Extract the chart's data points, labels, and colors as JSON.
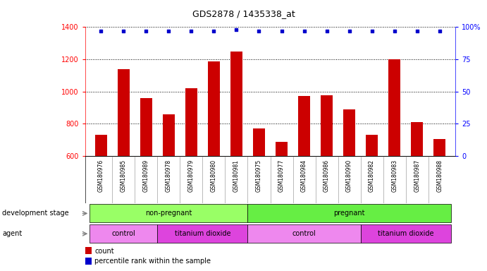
{
  "title": "GDS2878 / 1435338_at",
  "samples": [
    "GSM180976",
    "GSM180985",
    "GSM180989",
    "GSM180978",
    "GSM180979",
    "GSM180980",
    "GSM180981",
    "GSM180975",
    "GSM180977",
    "GSM180984",
    "GSM180986",
    "GSM180990",
    "GSM180982",
    "GSM180983",
    "GSM180987",
    "GSM180988"
  ],
  "counts": [
    730,
    1140,
    960,
    860,
    1020,
    1185,
    1250,
    770,
    685,
    970,
    975,
    890,
    730,
    1200,
    810,
    705
  ],
  "percentiles": [
    97,
    97,
    97,
    97,
    97,
    97,
    98,
    97,
    97,
    97,
    97,
    97,
    97,
    97,
    97,
    97
  ],
  "bar_color": "#CC0000",
  "dot_color": "#0000CC",
  "ylim_left": [
    600,
    1400
  ],
  "ylim_right": [
    0,
    100
  ],
  "yticks_left": [
    600,
    800,
    1000,
    1200,
    1400
  ],
  "yticks_right": [
    0,
    25,
    50,
    75,
    100
  ],
  "groups": [
    {
      "label": "non-pregnant",
      "start": 0,
      "end": 7,
      "color": "#99FF66"
    },
    {
      "label": "pregnant",
      "start": 7,
      "end": 16,
      "color": "#66EE44"
    }
  ],
  "agents": [
    {
      "label": "control",
      "start": 0,
      "end": 3,
      "color": "#EE88EE"
    },
    {
      "label": "titanium dioxide",
      "start": 3,
      "end": 7,
      "color": "#DD44DD"
    },
    {
      "label": "control",
      "start": 7,
      "end": 12,
      "color": "#EE88EE"
    },
    {
      "label": "titanium dioxide",
      "start": 12,
      "end": 16,
      "color": "#DD44DD"
    }
  ],
  "legend_count_color": "#CC0000",
  "legend_dot_color": "#0000CC",
  "background_color": "#FFFFFF",
  "label_area_color": "#CCCCCC"
}
